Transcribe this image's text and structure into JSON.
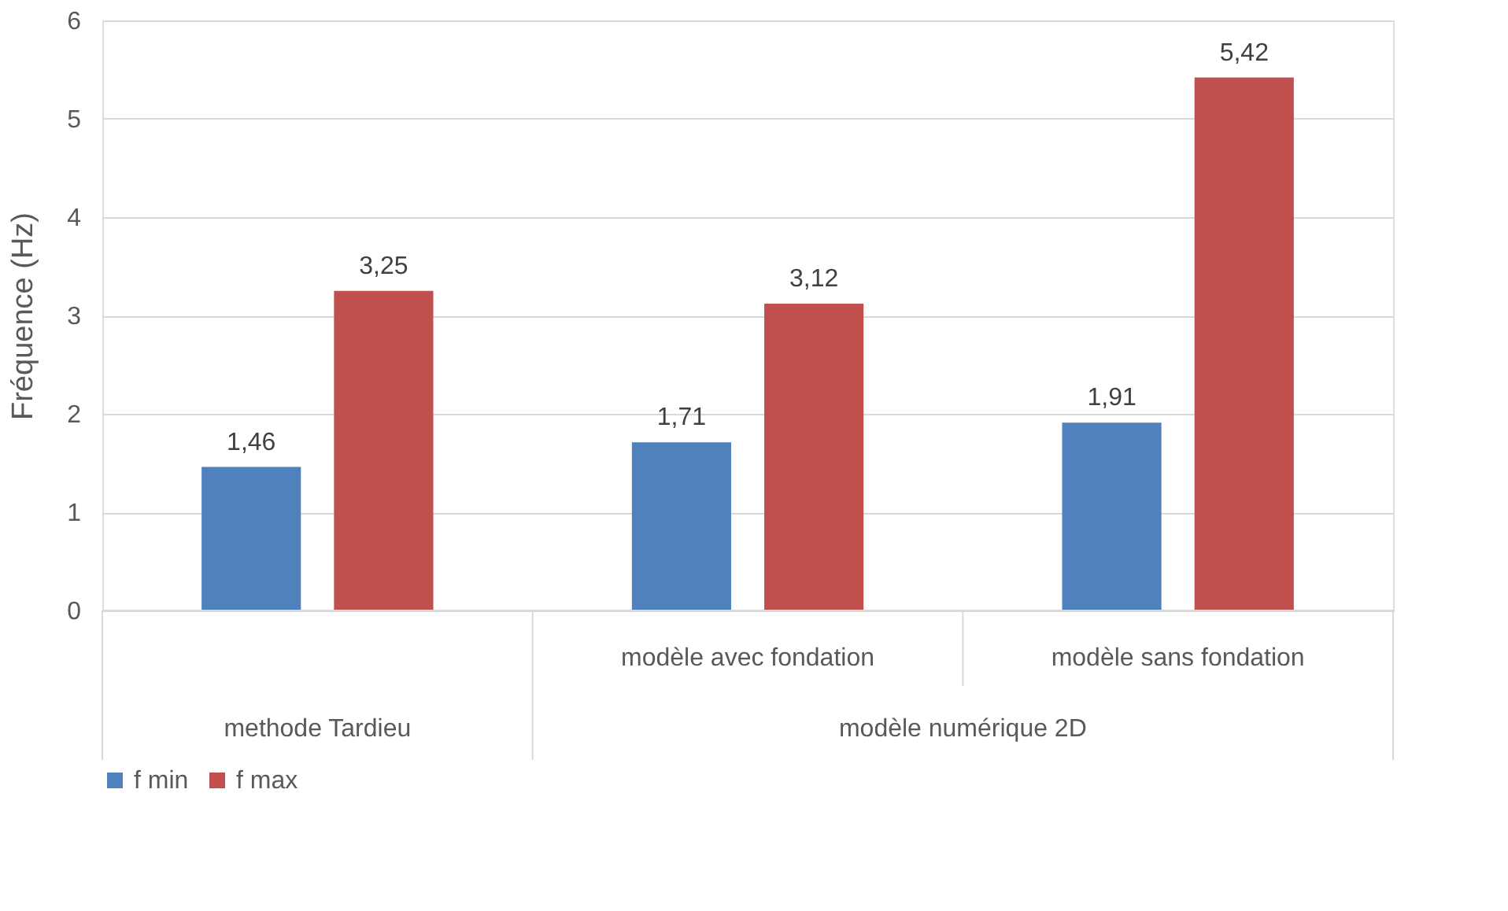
{
  "chart_data": {
    "type": "bar",
    "categories": [
      null,
      "modèle  avec fondation",
      "modèle  sans fondation"
    ],
    "ylabel": "Fréquence  (Hz)",
    "annotations": [
      "methode Tardieu",
      "modèle numérique 2D"
    ],
    "series": [
      {
        "name": "f min",
        "color": "#4f81bd",
        "values": [
          1.46,
          1.71,
          1.91
        ],
        "value_labels": [
          "1,46",
          "1,71",
          "1,91"
        ]
      },
      {
        "name": "f max",
        "color": "#c0504d",
        "values": [
          3.25,
          3.12,
          5.42
        ],
        "value_labels": [
          "3,25",
          "3,12",
          "5,42"
        ]
      }
    ],
    "ylim": [
      0,
      6
    ],
    "yticks": [
      0,
      1,
      2,
      3,
      4,
      5,
      6
    ],
    "grid": "y",
    "legend": "bottom"
  }
}
